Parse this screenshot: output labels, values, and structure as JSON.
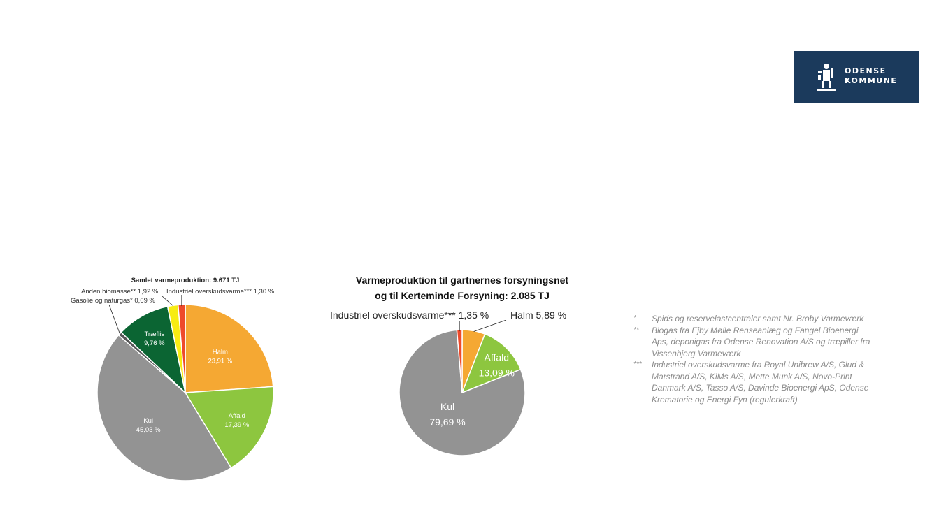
{
  "logo": {
    "line1": "ODENSE",
    "line2": "KOMMUNE"
  },
  "chart_data": [
    {
      "type": "pie",
      "title": "Samlet varmeproduktion: 9.671 TJ",
      "slices": [
        {
          "name": "Halm",
          "value": 23.91,
          "label": "23,91 %",
          "color": "#f5a833"
        },
        {
          "name": "Affald",
          "value": 17.39,
          "label": "17,39 %",
          "color": "#8dc63f"
        },
        {
          "name": "Kul",
          "value": 45.03,
          "label": "45,03 %",
          "color": "#939393"
        },
        {
          "name": "Gasolie og naturgas*",
          "value": 0.69,
          "label": "0,69 %",
          "color": "#555555"
        },
        {
          "name": "Træflis",
          "value": 9.76,
          "label": "9,76 %",
          "color": "#0b6533"
        },
        {
          "name": "Anden biomasse**",
          "value": 1.92,
          "label": "1,92 %",
          "color": "#f7ec13"
        },
        {
          "name": "Industriel overskudsvarme***",
          "value": 1.3,
          "label": "1,30 %",
          "color": "#ee4a2b"
        }
      ]
    },
    {
      "type": "pie",
      "title": "Varmeproduktion til gartnernes forsyningsnet og til Kerteminde Forsyning: 2.085 TJ",
      "title_lines": [
        "Varmeproduktion til gartnernes forsyningsnet",
        "og til Kerteminde Forsyning: 2.085 TJ"
      ],
      "slices": [
        {
          "name": "Halm",
          "value": 5.89,
          "label": "5,89 %",
          "color": "#f5a833"
        },
        {
          "name": "Affald",
          "value": 13.09,
          "label": "13,09 %",
          "color": "#8dc63f"
        },
        {
          "name": "Kul",
          "value": 79.69,
          "label": "79,69 %",
          "color": "#939393"
        },
        {
          "name": "Industriel overskudsvarme***",
          "value": 1.35,
          "label": "1,35 %",
          "color": "#ee4a2b"
        }
      ]
    }
  ],
  "footnotes": [
    {
      "mark": "*",
      "text": "Spids og reservelastcentraler samt Nr. Broby Varmeværk"
    },
    {
      "mark": "**",
      "text": "Biogas fra Ejby Mølle Renseanlæg og Fangel Bioenergi Aps, deponigas fra Odense Renovation A/S og træpiller fra Vissenbjerg Varmeværk"
    },
    {
      "mark": "***",
      "text": "Industriel overskudsvarme fra Royal Unibrew A/S, Glud & Marstrand A/S, KiMs A/S, Mette Munk A/S, Novo-Print Danmark A/S, Tasso A/S, Davinde Bioenergi ApS, Odense Krematorie og Energi Fyn (regulerkraft)"
    }
  ]
}
